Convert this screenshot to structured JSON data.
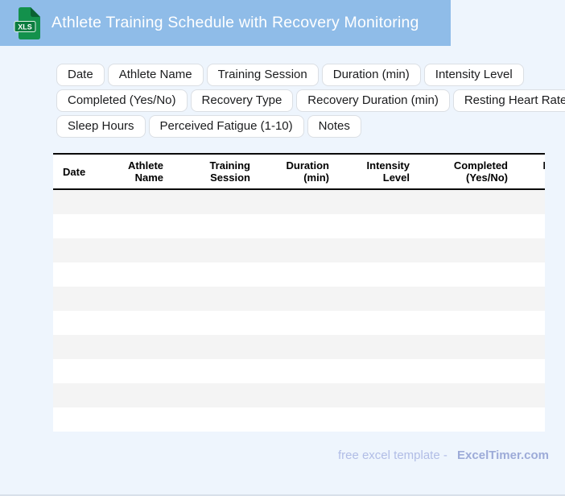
{
  "titlebar": {
    "title": "Athlete Training Schedule with Recovery Monitoring",
    "file_icon": {
      "label": "XLS"
    }
  },
  "field_chips": [
    "Date",
    "Athlete Name",
    "Training Session",
    "Duration (min)",
    "Intensity Level",
    "Completed (Yes/No)",
    "Recovery Type",
    "Recovery Duration (min)",
    "Resting Heart Rate",
    "Sleep Hours",
    "Perceived Fatigue (1-10)",
    "Notes"
  ],
  "table": {
    "columns": [
      {
        "label": "Date"
      },
      {
        "label": "Athlete\nName"
      },
      {
        "label": "Training\nSession"
      },
      {
        "label": "Duration\n(min)"
      },
      {
        "label": "Intensity\nLevel"
      },
      {
        "label": "Completed\n(Yes/No)"
      },
      {
        "label": "Recovery\nType"
      }
    ],
    "empty_rows": 10
  },
  "footer": {
    "text": "free excel template -",
    "brand": "ExcelTimer.com"
  },
  "colors": {
    "titlebar_bg": "#8FBCE8",
    "page_bg": "#EEF5FD",
    "row_stripe": "#F4F4F4",
    "table_border": "#0A0A0A",
    "icon_green": "#13914C",
    "icon_green_dark": "#0A6232",
    "icon_band_green": "#0C7C3F",
    "footer_text": "#B1BDE6",
    "footer_brand": "#9DABD8"
  }
}
